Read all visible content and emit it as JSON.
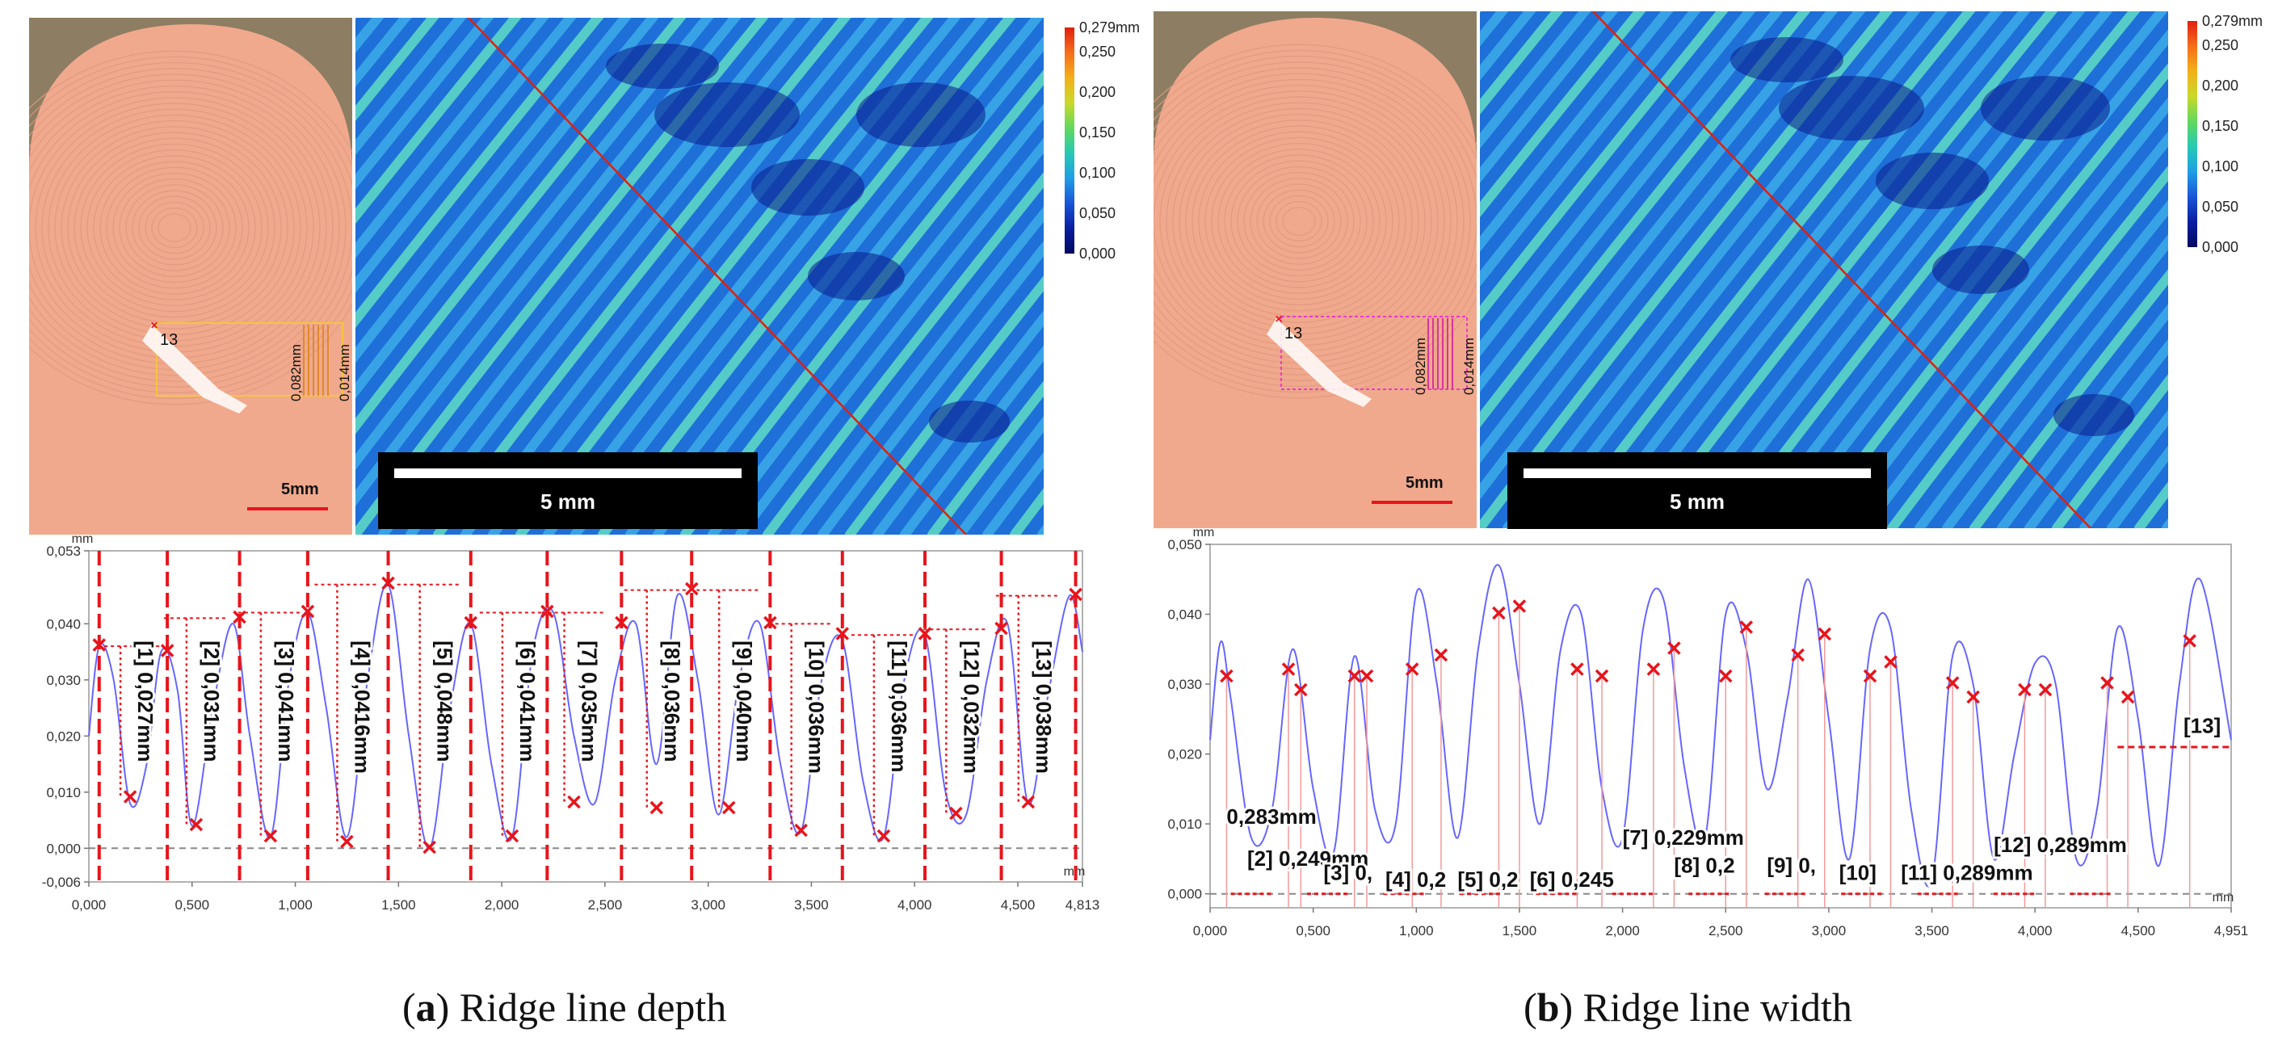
{
  "colors": {
    "ridge_line": "#6666ff",
    "marker": "#e8141b",
    "skin": "#f1a98c",
    "map_background": "#1f8fe0"
  },
  "panels": [
    {
      "id": "a",
      "caption_letter": "a",
      "caption_text": "Ridge line depth",
      "finger": {
        "selection_number": "13",
        "dim_label_1": "0,082mm",
        "dim_label_2": "0,014mm",
        "scale_label": "5mm"
      },
      "map": {
        "scale_label": "5 mm"
      },
      "colorbar": {
        "max_label": "0,279mm",
        "ticks": [
          "0,250",
          "0,200",
          "0,150",
          "0,100",
          "0,050",
          "0,000"
        ]
      },
      "plot": {
        "unit_x": "mm",
        "unit_y": "mm",
        "y_ticks": [
          "0,053",
          "0,040",
          "0,030",
          "0,020",
          "0,010",
          "0,000",
          "-0,006"
        ],
        "x_ticks": [
          "0,000",
          "0,500",
          "1,000",
          "1,500",
          "2,000",
          "2,500",
          "3,000",
          "3,500",
          "4,000",
          "4,500",
          "4,813"
        ],
        "measurements": [
          "[1] 0,027mm",
          "[2] 0,031mm",
          "[3] 0,041mm",
          "[4] 0,0416mm",
          "[5] 0,048mm",
          "[6] 0,041mm",
          "[7] 0,035mm",
          "[8] 0,036mm",
          "[9] 0,040mm",
          "[10] 0,036mm",
          "[11] 0,036mm",
          "[12] 0,032mm",
          "[13] 0,038mm"
        ]
      }
    },
    {
      "id": "b",
      "caption_letter": "b",
      "caption_text": "Ridge line width",
      "finger": {
        "selection_number": "13",
        "dim_label_1": "0,082mm",
        "dim_label_2": "0,014mm",
        "scale_label": "5mm"
      },
      "map": {
        "scale_label": "5 mm"
      },
      "colorbar": {
        "max_label": "0,279mm",
        "ticks": [
          "0,250",
          "0,200",
          "0,150",
          "0,100",
          "0,050",
          "0,000"
        ]
      },
      "plot": {
        "unit_x": "mm",
        "unit_y": "mm",
        "y_ticks": [
          "0,050",
          "0,040",
          "0,030",
          "0,020",
          "0,010",
          "0,000"
        ],
        "x_ticks": [
          "0,000",
          "0,500",
          "1,000",
          "1,500",
          "2,000",
          "2,500",
          "3,000",
          "3,500",
          "4,000",
          "4,500",
          "4,951"
        ],
        "measurements": [
          "0,283mm",
          "[2] 0,249mm",
          "[3] 0,",
          "[4] 0,2",
          "[5] 0,2",
          "[6] 0,245",
          "[7] 0,229mm",
          "[8] 0,2",
          "[9] 0,",
          "[10]",
          "[11] 0,289mm",
          "[12] 0,289mm",
          "[13]"
        ]
      }
    }
  ],
  "chart_data": [
    {
      "type": "line",
      "xlabel": "mm",
      "ylabel": "mm",
      "xlim": [
        0,
        4.813
      ],
      "ylim": [
        -0.006,
        0.053
      ],
      "series": [
        {
          "x": [
            0.0,
            0.05,
            0.12,
            0.2,
            0.28,
            0.35,
            0.43,
            0.5,
            0.6,
            0.7,
            0.78,
            0.88,
            0.97,
            1.06,
            1.15,
            1.25,
            1.35,
            1.45,
            1.55,
            1.65,
            1.75,
            1.85,
            1.95,
            2.05,
            2.15,
            2.25,
            2.35,
            2.45,
            2.55,
            2.65,
            2.75,
            2.85,
            2.95,
            3.05,
            3.15,
            3.25,
            3.35,
            3.45,
            3.55,
            3.65,
            3.75,
            3.85,
            3.95,
            4.05,
            4.15,
            4.25,
            4.35,
            4.45,
            4.55,
            4.65,
            4.75,
            4.813
          ],
          "y": [
            0.02,
            0.036,
            0.03,
            0.008,
            0.015,
            0.035,
            0.028,
            0.004,
            0.025,
            0.04,
            0.02,
            0.002,
            0.03,
            0.042,
            0.025,
            0.002,
            0.03,
            0.047,
            0.02,
            0.0,
            0.025,
            0.04,
            0.015,
            0.002,
            0.035,
            0.042,
            0.02,
            0.008,
            0.03,
            0.04,
            0.015,
            0.045,
            0.03,
            0.006,
            0.03,
            0.04,
            0.015,
            0.003,
            0.03,
            0.037,
            0.012,
            0.002,
            0.03,
            0.038,
            0.01,
            0.006,
            0.03,
            0.04,
            0.008,
            0.028,
            0.045,
            0.035
          ]
        }
      ]
    },
    {
      "type": "line",
      "xlabel": "mm",
      "ylabel": "mm",
      "xlim": [
        0,
        4.951
      ],
      "ylim": [
        -0.002,
        0.05
      ],
      "series": [
        {
          "x": [
            0.0,
            0.05,
            0.1,
            0.2,
            0.3,
            0.4,
            0.5,
            0.6,
            0.7,
            0.8,
            0.9,
            1.0,
            1.1,
            1.2,
            1.3,
            1.4,
            1.5,
            1.6,
            1.7,
            1.8,
            1.9,
            2.0,
            2.1,
            2.2,
            2.3,
            2.4,
            2.5,
            2.6,
            2.7,
            2.8,
            2.9,
            3.0,
            3.1,
            3.2,
            3.3,
            3.4,
            3.5,
            3.6,
            3.7,
            3.8,
            3.9,
            4.0,
            4.1,
            4.2,
            4.3,
            4.4,
            4.5,
            4.6,
            4.7,
            4.8,
            4.951
          ],
          "y": [
            0.022,
            0.036,
            0.028,
            0.008,
            0.012,
            0.035,
            0.015,
            0.006,
            0.034,
            0.012,
            0.01,
            0.043,
            0.03,
            0.008,
            0.035,
            0.047,
            0.03,
            0.01,
            0.035,
            0.04,
            0.015,
            0.008,
            0.038,
            0.042,
            0.018,
            0.008,
            0.04,
            0.035,
            0.015,
            0.028,
            0.045,
            0.025,
            0.005,
            0.035,
            0.038,
            0.012,
            0.002,
            0.034,
            0.03,
            0.005,
            0.02,
            0.033,
            0.03,
            0.005,
            0.012,
            0.038,
            0.025,
            0.004,
            0.03,
            0.045,
            0.022
          ]
        }
      ]
    }
  ]
}
